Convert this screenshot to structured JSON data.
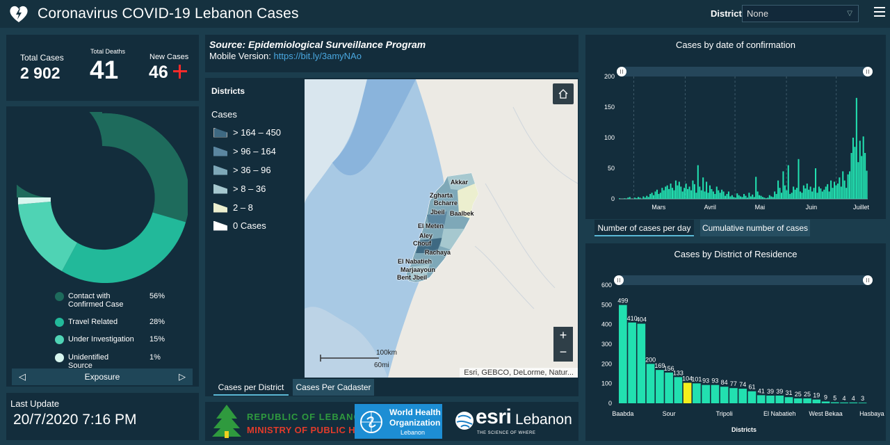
{
  "header": {
    "title": "Coronavirus COVID-19 Lebanon Cases",
    "district_label": "District",
    "district_value": "None"
  },
  "stats": {
    "total_cases_label": "Total Cases",
    "total_cases": "2 902",
    "total_deaths_label": "Total Deaths",
    "total_deaths": "41",
    "new_cases_label": "New Cases",
    "new_cases": "46"
  },
  "exposure": {
    "tab_label": "Exposure",
    "items": [
      {
        "label": "Contact with Confirmed Case",
        "pct": "56%",
        "color": "#1e6b5c"
      },
      {
        "label": "Travel Related",
        "pct": "28%",
        "color": "#22b99a"
      },
      {
        "label": "Under Investigation",
        "pct": "15%",
        "color": "#4fd3b4"
      },
      {
        "label": "Unidentified Source",
        "pct": "1%",
        "color": "#d8f6ef"
      }
    ]
  },
  "last_update": {
    "label": "Last Update",
    "value": "20/7/2020 7:16 PM"
  },
  "source": {
    "line1": "Source: Epidemiological Surveillance Program",
    "mobile_label": "Mobile Version:",
    "mobile_link": "https://bit.ly/3amyNAo"
  },
  "map": {
    "legend_title": "Districts",
    "legend_sub": "Cases",
    "legend_items": [
      {
        "label": "> 164 – 450",
        "color": "#3e6982"
      },
      {
        "label": "> 96 – 164",
        "color": "#5b86a0"
      },
      {
        "label": "> 36 – 96",
        "color": "#7ea8b8"
      },
      {
        "label": "> 8 – 36",
        "color": "#a6c8cf"
      },
      {
        "label": "2 – 8",
        "color": "#ecefcf"
      },
      {
        "label": "0 Cases",
        "color": "#ffffff"
      }
    ],
    "labels": [
      "Akkar",
      "Zgharta",
      "Bcharre",
      "Jbeil",
      "Baalbek",
      "El Meten",
      "Aley",
      "Chouf",
      "Rachaya",
      "El Nabatieh",
      "Marjaayoun",
      "Bent Jbeil"
    ],
    "scale_km": "100km",
    "scale_mi": "60mi",
    "attribution": "Esri, GEBCO, DeLorme, Natur...",
    "tabs": [
      "Cases per District",
      "Cases Per Cadaster"
    ]
  },
  "logos": {
    "lebanon_line1": "REPUBLIC OF LEBANON",
    "lebanon_line2": "MINISTRY OF PUBLIC HEALTH",
    "who_line1": "World Health",
    "who_line2": "Organization",
    "who_line3": "Lebanon",
    "esri_word": "esri",
    "esri_country": "Lebanon",
    "esri_tag": "THE SCIENCE OF WHERE"
  },
  "daily_chart": {
    "title": "Cases by  date of confirmation",
    "tabs": [
      "Number of cases per day",
      "Cumulative number of cases"
    ]
  },
  "district_chart": {
    "title": "Cases by District of Residence",
    "xlabel": "Districts"
  },
  "chart_data": [
    {
      "type": "bar",
      "title": "Cases by  date of confirmation",
      "xlabel": "",
      "ylabel": "",
      "ylim": [
        0,
        200
      ],
      "yticks": [
        0,
        50,
        100,
        150,
        200
      ],
      "x_tick_labels": [
        "Mars",
        "Avril",
        "Mai",
        "Juin",
        "Juillet"
      ],
      "x_start": "2020-02-21",
      "x_end": "2020-07-20",
      "values": [
        1,
        0,
        0,
        1,
        0,
        2,
        3,
        0,
        0,
        2,
        1,
        3,
        2,
        0,
        4,
        2,
        5,
        3,
        8,
        10,
        6,
        12,
        15,
        8,
        10,
        18,
        14,
        20,
        22,
        16,
        25,
        18,
        14,
        30,
        22,
        28,
        20,
        12,
        18,
        25,
        16,
        20,
        14,
        30,
        24,
        10,
        55,
        20,
        14,
        35,
        12,
        28,
        10,
        22,
        16,
        12,
        8,
        20,
        14,
        10,
        15,
        12,
        5,
        8,
        12,
        4,
        6,
        3,
        2,
        9,
        6,
        4,
        3,
        8,
        5,
        2,
        10,
        4,
        7,
        3,
        36,
        12,
        6,
        5,
        3,
        2,
        1,
        2,
        6,
        4,
        3,
        12,
        8,
        30,
        18,
        10,
        45,
        22,
        14,
        55,
        8,
        10,
        20,
        15,
        18,
        65,
        12,
        10,
        22,
        17,
        25,
        15,
        20,
        12,
        18,
        50,
        10,
        20,
        17,
        12,
        15,
        20,
        24,
        12,
        30,
        18,
        28,
        22,
        25,
        35,
        20,
        45,
        30,
        18,
        40,
        45,
        75,
        100,
        85,
        165,
        60,
        95,
        70,
        102,
        75,
        46
      ],
      "color": "#22e0b0"
    },
    {
      "type": "bar",
      "title": "Cases by District of Residence",
      "xlabel": "Districts",
      "ylabel": "",
      "ylim": [
        0,
        600
      ],
      "yticks": [
        0,
        100,
        200,
        300,
        400,
        500,
        600
      ],
      "x_tick_labels": [
        "Baabda",
        "Sour",
        "Tripoli",
        "El Nabatieh",
        "West Bekaa",
        "Hasbaya"
      ],
      "x_tick_index": [
        1,
        6,
        12,
        18,
        23,
        28
      ],
      "values": [
        499,
        410,
        404,
        200,
        169,
        156,
        133,
        104,
        101,
        93,
        93,
        84,
        77,
        74,
        61,
        41,
        39,
        39,
        31,
        25,
        25,
        19,
        9,
        5,
        4,
        4,
        3
      ],
      "highlight_index": 7,
      "color": "#22e0b0",
      "highlight_color": "#f4ef1c"
    }
  ]
}
